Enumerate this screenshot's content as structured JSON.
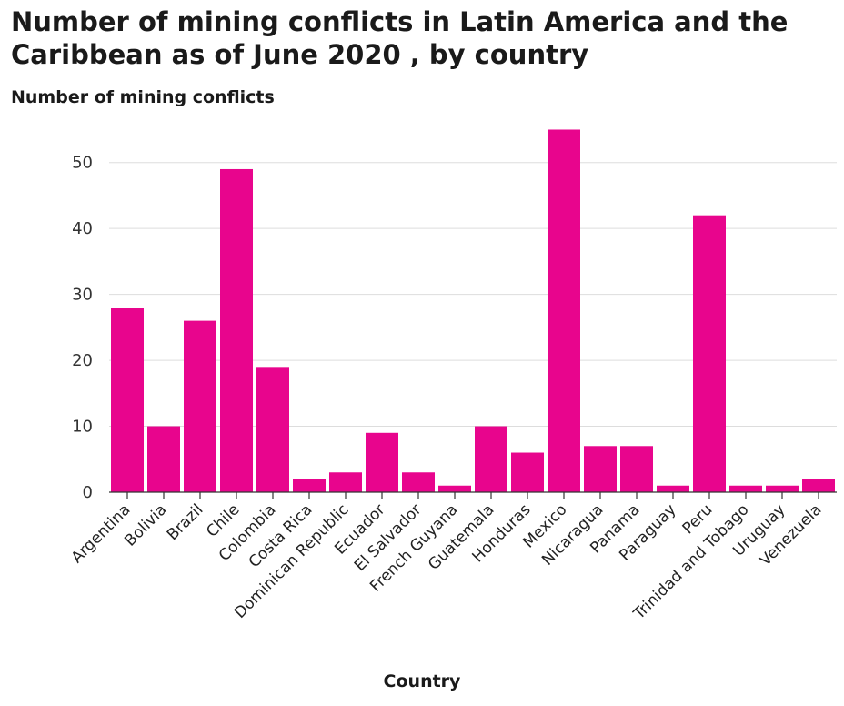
{
  "chart_data": {
    "type": "bar",
    "title": "Number of mining conflicts in Latin America and the Caribbean as of June 2020 , by country",
    "xlabel": "Country",
    "ylabel": "Number of mining conflicts",
    "categories": [
      "Argentina",
      "Bolivia",
      "Brazil",
      "Chile",
      "Colombia",
      "Costa Rica",
      "Dominican Republic",
      "Ecuador",
      "El Salvador",
      "French Guyana",
      "Guatemala",
      "Honduras",
      "Mexico",
      "Nicaragua",
      "Panama",
      "Paraguay",
      "Peru",
      "Trinidad and Tobago",
      "Uruguay",
      "Venezuela"
    ],
    "values": [
      28,
      10,
      26,
      49,
      19,
      2,
      3,
      9,
      3,
      1,
      10,
      6,
      55,
      7,
      7,
      1,
      42,
      1,
      1,
      2
    ],
    "yticks": [
      0,
      10,
      20,
      30,
      40,
      50
    ],
    "ylim": [
      0,
      57
    ],
    "grid": true,
    "bar_color": "#e8058d",
    "grid_color": "#dddddd"
  }
}
